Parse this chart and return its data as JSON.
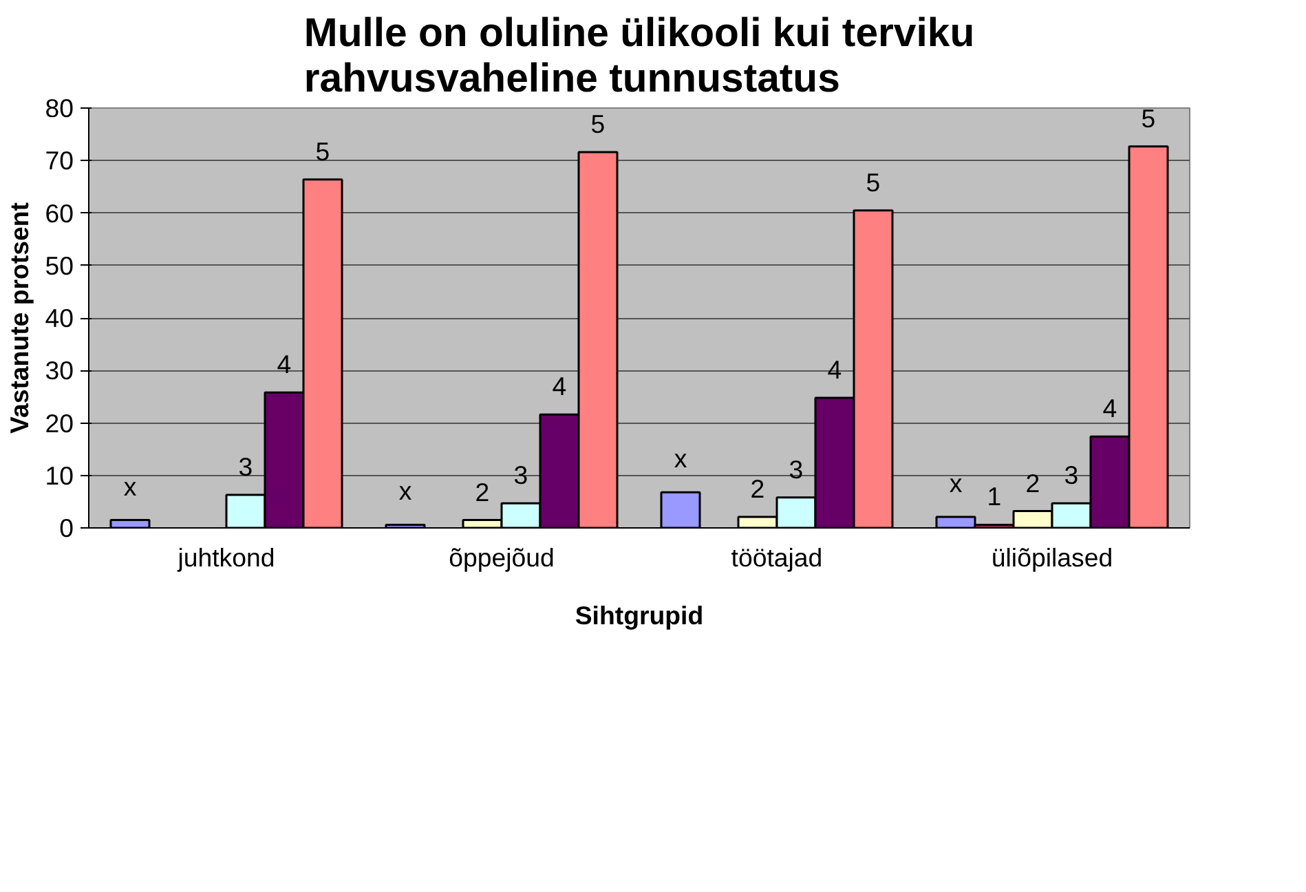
{
  "chart_data": {
    "type": "bar",
    "title": "Mulle on oluline ülikooli kui terviku\nrahvusvaheline tunnustatus",
    "xlabel": "Sihtgrupid",
    "ylabel": "Vastanute protsent",
    "categories": [
      "juhtkond",
      "õppejõud",
      "töötajad",
      "üliõpilased"
    ],
    "ylim": [
      0,
      80
    ],
    "yticks": [
      0,
      10,
      20,
      30,
      40,
      50,
      60,
      70,
      80
    ],
    "grid": "y",
    "series": [
      {
        "name": "x",
        "color": "#9999ff",
        "values": [
          1.5,
          0.6,
          6.8,
          2.1
        ]
      },
      {
        "name": "1",
        "color": "#993366",
        "values": [
          null,
          null,
          null,
          0.6
        ]
      },
      {
        "name": "2",
        "color": "#ffffcc",
        "values": [
          null,
          1.5,
          2.1,
          3.2
        ]
      },
      {
        "name": "3",
        "color": "#ccffff",
        "values": [
          6.3,
          4.7,
          5.8,
          4.7
        ]
      },
      {
        "name": "4",
        "color": "#660066",
        "values": [
          25.8,
          21.6,
          24.8,
          17.4
        ]
      },
      {
        "name": "5",
        "color": "#ff8080",
        "values": [
          66.4,
          71.6,
          60.5,
          72.7
        ]
      }
    ]
  }
}
